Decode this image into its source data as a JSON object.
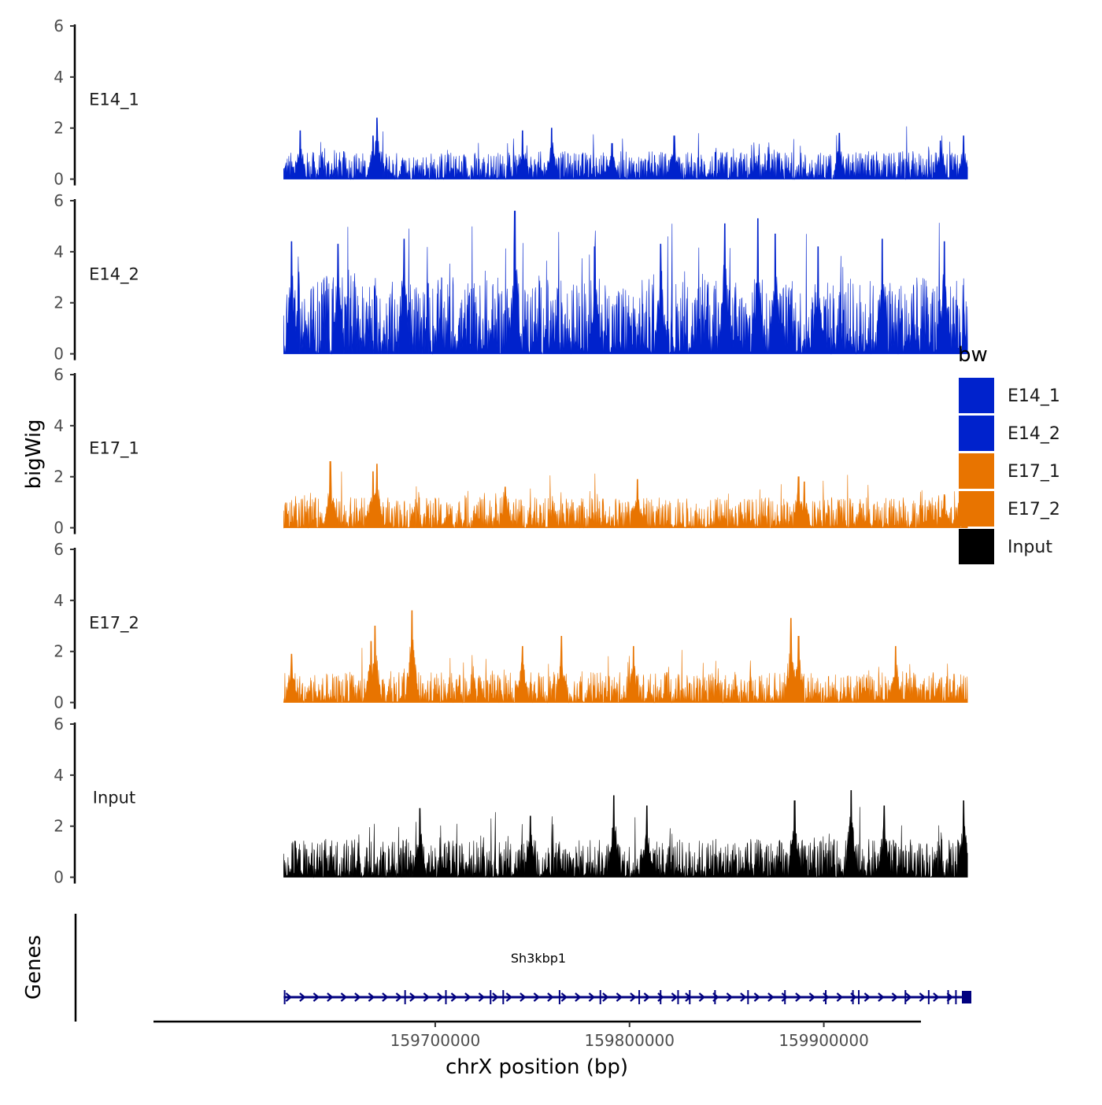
{
  "chart_data": {
    "type": "area",
    "subtype": "genome-coverage-tracks",
    "y_axis_title": "bigWig",
    "genes_axis_title": "Genes",
    "x_axis_title": "chrX position (bp)",
    "x_ticks": [
      159700000,
      159800000,
      159900000
    ],
    "x_tick_labels": [
      "159700000",
      "159800000",
      "159900000"
    ],
    "x_range": [
      159555000,
      159950000
    ],
    "data_x_range": [
      159622000,
      159974000
    ],
    "y_ticks": [
      0,
      2,
      4,
      6
    ],
    "y_tick_labels": [
      "0",
      "2",
      "4",
      "6"
    ],
    "ylim": [
      0,
      6
    ],
    "series": [
      {
        "name": "E14_1",
        "color": "#0022CC",
        "typical_max": 1.1,
        "max": 2.4,
        "peaks": [
          {
            "x": 159630500,
            "y": 1.9
          },
          {
            "x": 159668000,
            "y": 1.7
          },
          {
            "x": 159670000,
            "y": 2.4
          },
          {
            "x": 159745000,
            "y": 1.9
          },
          {
            "x": 159760000,
            "y": 2.0
          },
          {
            "x": 159791000,
            "y": 1.4
          },
          {
            "x": 159823000,
            "y": 1.7
          },
          {
            "x": 159908000,
            "y": 1.8
          },
          {
            "x": 159960000,
            "y": 1.5
          },
          {
            "x": 159972000,
            "y": 1.7
          }
        ]
      },
      {
        "name": "E14_2",
        "color": "#0022CC",
        "typical_max": 3.0,
        "max": 5.6,
        "peaks": [
          {
            "x": 159626000,
            "y": 4.4
          },
          {
            "x": 159650000,
            "y": 4.3
          },
          {
            "x": 159684000,
            "y": 4.5
          },
          {
            "x": 159741000,
            "y": 5.6
          },
          {
            "x": 159782000,
            "y": 4.2
          },
          {
            "x": 159816000,
            "y": 4.3
          },
          {
            "x": 159849000,
            "y": 5.1
          },
          {
            "x": 159866000,
            "y": 5.3
          },
          {
            "x": 159875000,
            "y": 4.7
          },
          {
            "x": 159897000,
            "y": 4.2
          },
          {
            "x": 159930000,
            "y": 4.5
          },
          {
            "x": 159962000,
            "y": 4.4
          }
        ]
      },
      {
        "name": "E17_1",
        "color": "#E87400",
        "typical_max": 1.2,
        "max": 2.6,
        "peaks": [
          {
            "x": 159646000,
            "y": 2.6
          },
          {
            "x": 159668000,
            "y": 2.2
          },
          {
            "x": 159670000,
            "y": 2.5
          },
          {
            "x": 159736000,
            "y": 1.6
          },
          {
            "x": 159804000,
            "y": 1.9
          },
          {
            "x": 159887000,
            "y": 2.0
          },
          {
            "x": 159890000,
            "y": 1.8
          },
          {
            "x": 159962000,
            "y": 1.3
          }
        ]
      },
      {
        "name": "E17_2",
        "color": "#E87400",
        "typical_max": 1.2,
        "max": 3.6,
        "peaks": [
          {
            "x": 159626000,
            "y": 1.9
          },
          {
            "x": 159667000,
            "y": 2.4
          },
          {
            "x": 159669000,
            "y": 3.0
          },
          {
            "x": 159688000,
            "y": 3.6
          },
          {
            "x": 159745000,
            "y": 2.2
          },
          {
            "x": 159765000,
            "y": 2.6
          },
          {
            "x": 159802000,
            "y": 2.2
          },
          {
            "x": 159883000,
            "y": 3.3
          },
          {
            "x": 159887000,
            "y": 2.6
          },
          {
            "x": 159937000,
            "y": 2.2
          }
        ]
      },
      {
        "name": "Input",
        "color": "#000000",
        "typical_max": 1.5,
        "max": 3.4,
        "peaks": [
          {
            "x": 159692000,
            "y": 2.7
          },
          {
            "x": 159749000,
            "y": 2.4
          },
          {
            "x": 159792000,
            "y": 3.2
          },
          {
            "x": 159809000,
            "y": 2.8
          },
          {
            "x": 159885000,
            "y": 3.0
          },
          {
            "x": 159914000,
            "y": 3.4
          },
          {
            "x": 159931000,
            "y": 2.8
          },
          {
            "x": 159972000,
            "y": 3.0
          }
        ]
      }
    ],
    "legend": {
      "title": "bw",
      "position": "right",
      "entries": [
        {
          "label": "E14_1",
          "color": "#0022CC"
        },
        {
          "label": "E14_2",
          "color": "#0022CC"
        },
        {
          "label": "E17_1",
          "color": "#E87400"
        },
        {
          "label": "E17_2",
          "color": "#E87400"
        },
        {
          "label": "Input",
          "color": "#000000"
        }
      ]
    },
    "gene_track": {
      "gene_name": "Sh3kbp1",
      "strand": "+",
      "start": 159622000,
      "end": 159974000,
      "color": "#00007F",
      "exons": [
        159622500,
        159684500,
        159705500,
        159728500,
        159735000,
        159764000,
        159785000,
        159805000,
        159816000,
        159825000,
        159831000,
        159844000,
        159861000,
        159880000,
        159901000,
        159915000,
        159918000,
        159942000,
        159954000,
        159964000,
        159968000,
        159973500
      ]
    }
  }
}
